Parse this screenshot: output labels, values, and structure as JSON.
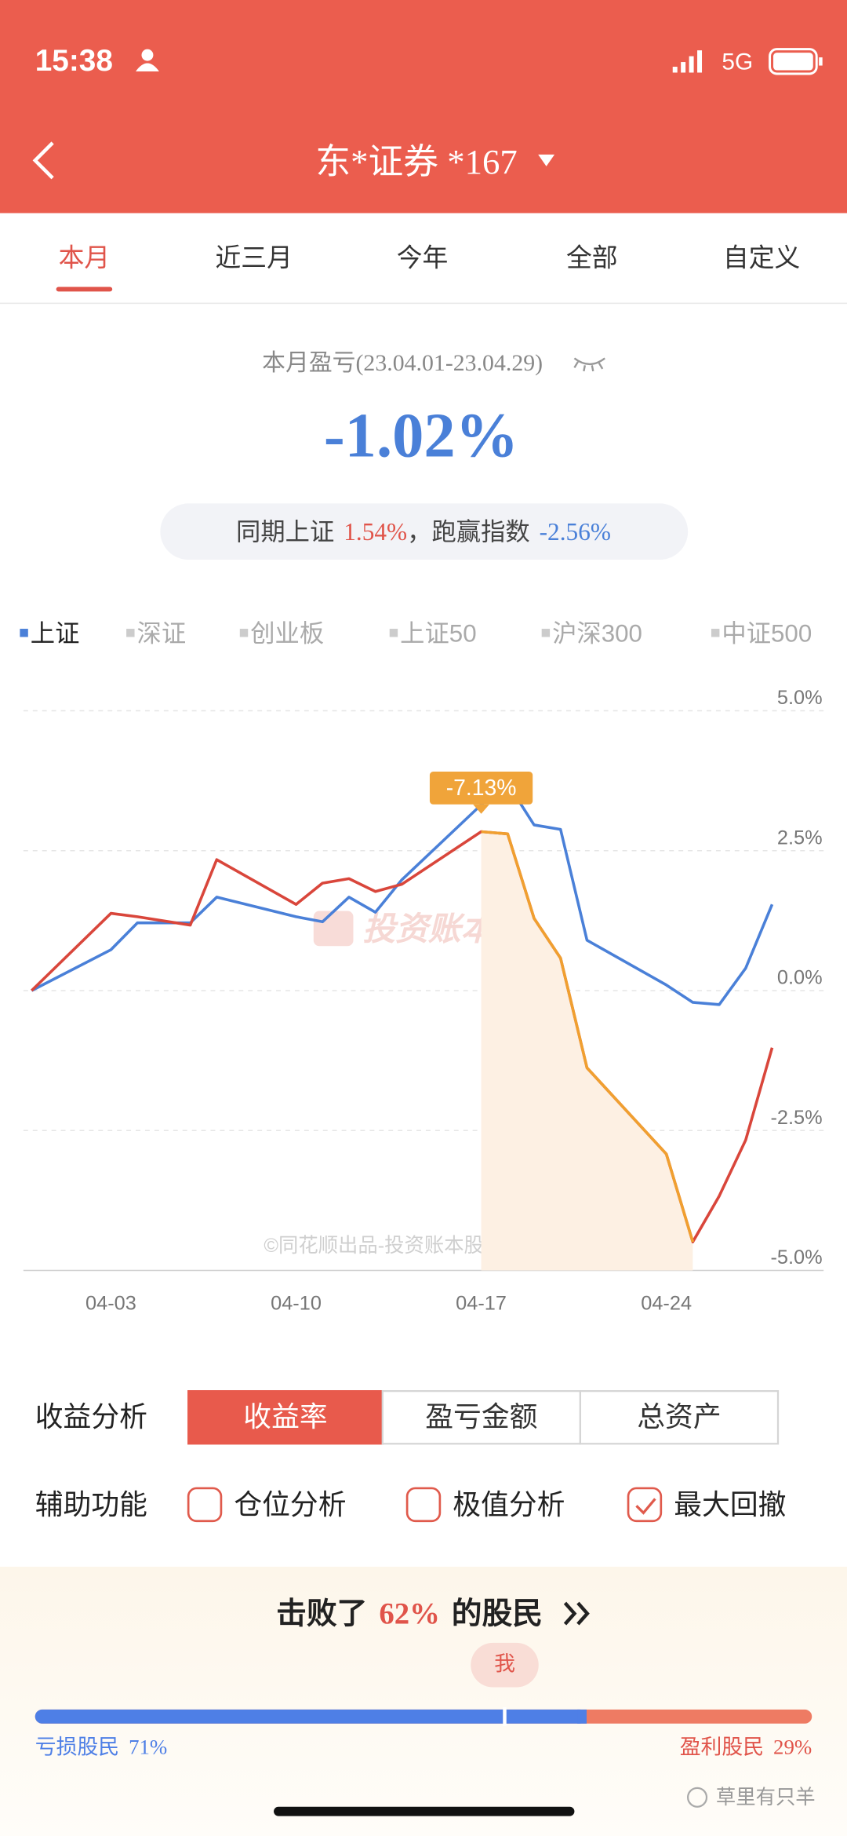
{
  "status_bar": {
    "time": "15:38",
    "network": "5G"
  },
  "header": {
    "title": "东*证券 *167"
  },
  "tabs": [
    "本月",
    "近三月",
    "今年",
    "全部",
    "自定义"
  ],
  "summary": {
    "period_label": "本月盈亏(23.04.01-23.04.29)",
    "return": "-1.02%",
    "compare_prefix": "同期上证",
    "index_return": "1.54%",
    "compare_middle": "，跑赢指数",
    "excess_return": "-2.56%"
  },
  "chart_data": {
    "type": "line",
    "x": [
      "03-31",
      "04-03",
      "04-04",
      "04-06",
      "04-07",
      "04-10",
      "04-11",
      "04-12",
      "04-13",
      "04-14",
      "04-17",
      "04-18",
      "04-19",
      "04-20",
      "04-21",
      "04-24",
      "04-25",
      "04-26",
      "04-27",
      "04-28"
    ],
    "series": [
      {
        "color": "#d9463b",
        "values": [
          0,
          1.38,
          1.32,
          1.17,
          2.34,
          1.54,
          1.92,
          2.0,
          1.77,
          1.9,
          2.84,
          2.8,
          1.29,
          0.58,
          -1.38,
          -2.92,
          -4.49,
          -3.67,
          -2.67,
          -1.02
        ]
      },
      {
        "name": "上证",
        "color": "#4a80d8",
        "values": [
          0,
          0.73,
          1.21,
          1.21,
          1.67,
          1.32,
          1.23,
          1.67,
          1.4,
          1.98,
          3.32,
          3.7,
          2.96,
          2.88,
          0.9,
          0.1,
          -0.21,
          -0.25,
          0.4,
          1.54
        ]
      }
    ],
    "other_indices": [
      "深证",
      "创业板",
      "上证50",
      "沪深300",
      "中证500"
    ],
    "xlim": [
      "03-31",
      "04-28"
    ],
    "xticks": [
      "04-03",
      "04-10",
      "04-17",
      "04-24"
    ],
    "ylim": [
      -5,
      5
    ],
    "yticks": [
      {
        "value": -5,
        "label": "-5.0%"
      },
      {
        "value": -2.5,
        "label": "-2.5%"
      },
      {
        "value": 0,
        "label": "0.0%"
      },
      {
        "value": 2.5,
        "label": "2.5%"
      },
      {
        "value": 5,
        "label": "5.0%"
      }
    ],
    "grid": true,
    "max_drawdown": {
      "value": -7.13,
      "value_label": "-7.13%",
      "start": "04-17",
      "end": "04-25",
      "color": "#f0a030"
    },
    "watermark": "投资账本",
    "credit": "©同花顺出品-投资账本股票资产分析"
  },
  "analysis": {
    "label": "收益分析",
    "options": [
      "收益率",
      "盈亏金额",
      "总资产"
    ]
  },
  "tools": {
    "label": "辅助功能",
    "options": [
      {
        "label": "仓位分析",
        "checked": false
      },
      {
        "label": "极值分析",
        "checked": false
      },
      {
        "label": "最大回撤",
        "checked": true
      }
    ]
  },
  "ranking": {
    "prefix": "击败了",
    "percent": "62%",
    "suffix": "的股民",
    "marker": "我",
    "loss_label": "亏损股民",
    "loss_share": "71%",
    "profit_label": "盈利股民",
    "profit_share": "29%"
  },
  "watermark": "草里有只羊"
}
